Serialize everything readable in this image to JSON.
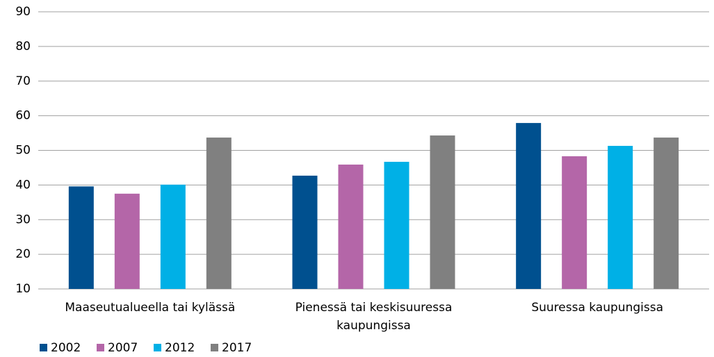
{
  "chart_data": {
    "type": "bar",
    "categories": [
      "Maaseutualueella tai kylässä",
      "Pienessä tai keskisuuressa kaupungissa",
      "Suuressa kaupungissa"
    ],
    "series": [
      {
        "name": "2002",
        "color": "#00508f",
        "values": [
          39.6,
          42.7,
          57.9
        ]
      },
      {
        "name": "2007",
        "color": "#b466a8",
        "values": [
          37.5,
          45.9,
          48.3
        ]
      },
      {
        "name": "2012",
        "color": "#00b0e6",
        "values": [
          40.1,
          46.7,
          51.3
        ]
      },
      {
        "name": "2017",
        "color": "#808080",
        "values": [
          53.7,
          54.3,
          53.7
        ]
      }
    ],
    "ylim": [
      10,
      90
    ],
    "yticks": [
      10,
      20,
      30,
      40,
      50,
      60,
      70,
      80,
      90
    ],
    "grid": true,
    "legend": "bottom"
  }
}
